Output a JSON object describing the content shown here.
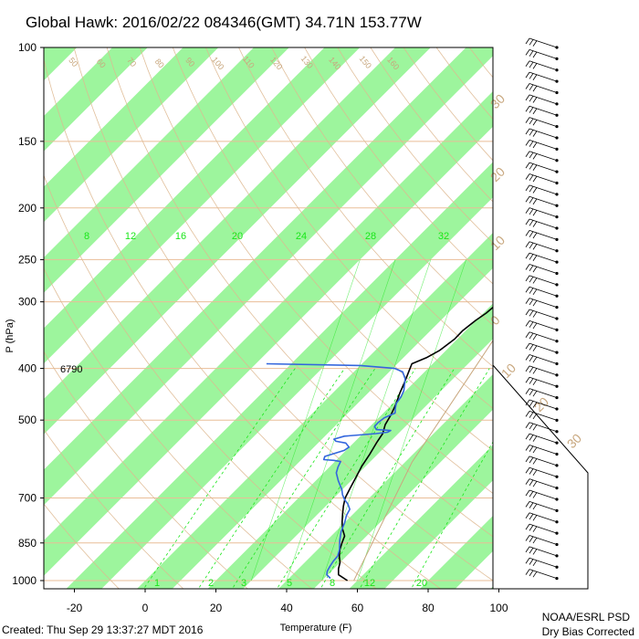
{
  "title": "Global Hawk: 2016/02/22 084346(GMT) 34.71N 153.77W",
  "footer": {
    "created": "Created: Thu Sep 29 13:37:27 MDT 2016",
    "org": "NOAA/ESRL PSD",
    "correction": "Dry Bias Corrected"
  },
  "colors": {
    "temperature": "#000000",
    "dewpoint": "#3366dd",
    "isotherm_band": "#9df59d",
    "dry_adiabat": "#deb890",
    "mixing_ratio": "#19e619"
  },
  "chart_data": {
    "type": "line",
    "title": "Global Hawk: 2016/02/22 084346(GMT) 34.71N 153.77W",
    "xlabel": "Temperature (F)",
    "ylabel": "P (hPa)",
    "x_ticks": [
      -20,
      0,
      20,
      40,
      60,
      80,
      100
    ],
    "y_ticks": [
      100,
      150,
      200,
      250,
      300,
      400,
      500,
      700,
      850,
      1000
    ],
    "xlim": [
      -27,
      120
    ],
    "ylim": [
      1050,
      100
    ],
    "y_scale": "log",
    "annotation": "6790",
    "mixing_ratio_labels": [
      "8",
      "12",
      "16",
      "20",
      "24",
      "28",
      "32"
    ],
    "mixing_ratio_bottom_labels": [
      "1",
      "2",
      "3",
      "5",
      "8",
      "12",
      "20"
    ],
    "dry_adiabat_labels": [
      "50",
      "60",
      "70",
      "80",
      "90",
      "100",
      "110",
      "120",
      "130",
      "140",
      "150",
      "160"
    ],
    "dry_adiabat_side_labels": [
      "30",
      "20",
      "10",
      "0",
      "10",
      "20",
      "30"
    ],
    "series": [
      {
        "name": "Temperature",
        "color": "#000000",
        "points": [
          {
            "t": 57.2,
            "p": 1000
          },
          {
            "t": 53,
            "p": 975
          },
          {
            "t": 51.3,
            "p": 950
          },
          {
            "t": 50,
            "p": 925
          },
          {
            "t": 48,
            "p": 900
          },
          {
            "t": 46.3,
            "p": 875
          },
          {
            "t": 45,
            "p": 850
          },
          {
            "t": 43.8,
            "p": 825
          },
          {
            "t": 41.2,
            "p": 800
          },
          {
            "t": 39,
            "p": 775
          },
          {
            "t": 37,
            "p": 750
          },
          {
            "t": 35,
            "p": 725
          },
          {
            "t": 33.2,
            "p": 700
          },
          {
            "t": 31.8,
            "p": 670
          },
          {
            "t": 30.4,
            "p": 640
          },
          {
            "t": 28.9,
            "p": 610
          },
          {
            "t": 27.8,
            "p": 580
          },
          {
            "t": 26.4,
            "p": 550
          },
          {
            "t": 25.6,
            "p": 530
          },
          {
            "t": 23.8,
            "p": 510
          },
          {
            "t": 22.7,
            "p": 490
          },
          {
            "t": 21.3,
            "p": 470
          },
          {
            "t": 19,
            "p": 445
          },
          {
            "t": 17.3,
            "p": 425
          },
          {
            "t": 15.4,
            "p": 405
          },
          {
            "t": 14.1,
            "p": 392
          },
          {
            "t": 16.5,
            "p": 382
          },
          {
            "t": 18.2,
            "p": 370
          },
          {
            "t": 19.2,
            "p": 352
          },
          {
            "t": 19.1,
            "p": 340
          },
          {
            "t": 19.9,
            "p": 325
          },
          {
            "t": 20.8,
            "p": 315
          },
          {
            "t": 21.3,
            "p": 302
          },
          {
            "t": 21.8,
            "p": 292
          },
          {
            "t": 22.7,
            "p": 280
          },
          {
            "t": 24.2,
            "p": 262
          },
          {
            "t": 25.1,
            "p": 250
          },
          {
            "t": 25.9,
            "p": 240
          },
          {
            "t": 26.7,
            "p": 230
          },
          {
            "t": 28.9,
            "p": 220
          },
          {
            "t": 30.8,
            "p": 210
          },
          {
            "t": 32.1,
            "p": 200
          },
          {
            "t": 33.1,
            "p": 190
          },
          {
            "t": 33.8,
            "p": 180
          },
          {
            "t": 34.7,
            "p": 170
          },
          {
            "t": 35.1,
            "p": 160
          },
          {
            "t": 35.8,
            "p": 150
          },
          {
            "t": 37.4,
            "p": 140
          },
          {
            "t": 38.1,
            "p": 130
          },
          {
            "t": 39.1,
            "p": 120
          },
          {
            "t": 39,
            "p": 115
          },
          {
            "t": 40.7,
            "p": 108
          },
          {
            "t": 40.9,
            "p": 103
          },
          {
            "t": 41.2,
            "p": 100
          }
        ]
      },
      {
        "name": "Dew Point",
        "color": "#3366dd",
        "points": [
          {
            "t": 51.7,
            "p": 990
          },
          {
            "t": 49.7,
            "p": 975
          },
          {
            "t": 48.8,
            "p": 960
          },
          {
            "t": 48.2,
            "p": 940
          },
          {
            "t": 47.7,
            "p": 920
          },
          {
            "t": 47.5,
            "p": 900
          },
          {
            "t": 46.2,
            "p": 875
          },
          {
            "t": 43.6,
            "p": 840
          },
          {
            "t": 41.6,
            "p": 810
          },
          {
            "t": 40.1,
            "p": 780
          },
          {
            "t": 38.5,
            "p": 755
          },
          {
            "t": 37.7,
            "p": 735
          },
          {
            "t": 35.6,
            "p": 718
          },
          {
            "t": 33.5,
            "p": 705
          },
          {
            "t": 31.5,
            "p": 690
          },
          {
            "t": 29.9,
            "p": 675
          },
          {
            "t": 26.4,
            "p": 650
          },
          {
            "t": 23.6,
            "p": 628
          },
          {
            "t": 22.4,
            "p": 612
          },
          {
            "t": 21.6,
            "p": 598
          },
          {
            "t": 19.3,
            "p": 595
          },
          {
            "t": 16.3,
            "p": 593
          },
          {
            "t": 15.7,
            "p": 585
          },
          {
            "t": 19.5,
            "p": 570
          },
          {
            "t": 19.9,
            "p": 562
          },
          {
            "t": 17.8,
            "p": 552
          },
          {
            "t": 14.6,
            "p": 548
          },
          {
            "t": 13.4,
            "p": 543
          },
          {
            "t": 15.5,
            "p": 536
          },
          {
            "t": 23.7,
            "p": 530
          },
          {
            "t": 26.6,
            "p": 527
          },
          {
            "t": 27,
            "p": 523
          },
          {
            "t": 22.7,
            "p": 521
          },
          {
            "t": 21.3,
            "p": 514
          },
          {
            "t": 21.2,
            "p": 505
          },
          {
            "t": 21.6,
            "p": 495
          },
          {
            "t": 23.3,
            "p": 485
          },
          {
            "t": 22,
            "p": 475
          },
          {
            "t": 20.9,
            "p": 465
          },
          {
            "t": 20.4,
            "p": 452
          },
          {
            "t": 19.4,
            "p": 440
          },
          {
            "t": 17.8,
            "p": 428
          },
          {
            "t": 16.4,
            "p": 418
          },
          {
            "t": 13.8,
            "p": 406
          },
          {
            "t": 10.6,
            "p": 400
          },
          {
            "t": 0,
            "p": 395
          },
          {
            "t": -27,
            "p": 392
          }
        ]
      }
    ]
  }
}
